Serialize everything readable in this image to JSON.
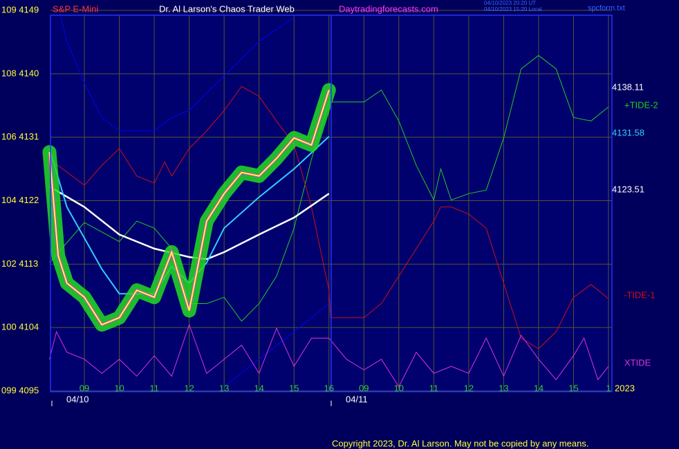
{
  "chart_data": {
    "type": "line",
    "instrument": "S&P E-Mini",
    "title": "Dr. Al Larson's Chaos Trader Web",
    "site": "Daytradingforecasts.com",
    "timestamps": [
      "04/10/2023 20:20 UT",
      "04/10/2023 15:20 Local"
    ],
    "file": "spcform.txt",
    "date_labels": [
      "04/10",
      "04/11"
    ],
    "price_labels": [
      "4138.11",
      "4131.58",
      "4123.51"
    ],
    "year_label": "2023",
    "copyright": "Copyright 2023, Dr. Al Larson. May not be copied by any means.",
    "xlim": [
      0,
      16
    ],
    "xticks": [
      {
        "value": 1,
        "label": "09"
      },
      {
        "value": 2,
        "label": "10"
      },
      {
        "value": 3,
        "label": "11"
      },
      {
        "value": 4,
        "label": "12"
      },
      {
        "value": 5,
        "label": "13"
      },
      {
        "value": 6,
        "label": "14"
      },
      {
        "value": 7,
        "label": "15"
      },
      {
        "value": 8,
        "label": "16"
      },
      {
        "value": 9,
        "label": "09"
      },
      {
        "value": 10,
        "label": "10"
      },
      {
        "value": 11,
        "label": "11"
      },
      {
        "value": 12,
        "label": "12"
      },
      {
        "value": 13,
        "label": "13"
      },
      {
        "value": 14,
        "label": "14"
      },
      {
        "value": 15,
        "label": "15"
      },
      {
        "value": 16,
        "label": "1"
      }
    ],
    "ylim": [
      4095,
      4149
    ],
    "yticks": [
      {
        "value": 4149,
        "label": "109 4149"
      },
      {
        "value": 4140,
        "label": "108 4140"
      },
      {
        "value": 4131,
        "label": "106 4131"
      },
      {
        "value": 4122,
        "label": "104 4122"
      },
      {
        "value": 4113,
        "label": "102 4113"
      },
      {
        "value": 4104,
        "label": "100 4104"
      },
      {
        "value": 4095,
        "label": "099 4095"
      }
    ],
    "grid": true,
    "series": [
      {
        "color": "#0000ff",
        "x": [
          0.3,
          0.5,
          1,
          1.5,
          2,
          3,
          3.5,
          4,
          5,
          6,
          7
        ],
        "values": [
          4148.5,
          4144.6,
          4138.7,
          4133.8,
          4131.9,
          4131.9,
          4133.8,
          4134.8,
          4139.7,
          4144.6,
          4148.0
        ]
      },
      {
        "color": "#0000ff",
        "x": [
          5,
          6,
          7,
          8
        ],
        "values": [
          4095.6,
          4099.5,
          4103.4,
          4107.4
        ]
      },
      {
        "name": "+TIDE-2",
        "color": "#22cc22",
        "x": [
          0,
          1,
          2,
          2.5,
          3,
          3.5,
          4,
          4.5,
          5,
          5.5,
          6,
          6.5,
          7,
          7.5,
          8,
          8.5,
          9,
          9.5,
          10,
          10.5,
          11,
          11.2,
          11.5,
          12,
          12.5,
          13,
          13.5,
          14,
          14.5,
          15,
          15.5,
          16
        ],
        "values": [
          4113.2,
          4118.9,
          4116.2,
          4119.1,
          4118.1,
          4115.2,
          4107.4,
          4107.4,
          4108.3,
          4104.9,
          4107.4,
          4111.3,
          4118.1,
          4127.9,
          4136.0,
          4136.0,
          4136.0,
          4137.7,
          4133.3,
          4127.0,
          4122.1,
          4126.5,
          4122.1,
          4123.0,
          4123.5,
          4130.9,
          4140.7,
          4142.6,
          4140.7,
          4133.8,
          4133.3,
          4135.3
        ]
      },
      {
        "name": "-TIDE-1",
        "color": "#cc1111",
        "x": [
          0,
          1,
          1.5,
          2,
          2.5,
          3,
          3.3,
          3.5,
          4,
          4.5,
          5,
          5.5,
          6,
          6.5,
          7,
          7.5,
          8,
          8.05,
          9,
          9.5,
          10,
          11,
          11.2,
          11.5,
          12,
          12.5,
          13,
          13.5,
          14,
          14.5,
          15,
          15.5,
          16
        ],
        "values": [
          4127.9,
          4124.2,
          4127.0,
          4129.4,
          4125.5,
          4124.5,
          4127.5,
          4125.5,
          4129.4,
          4131.9,
          4134.8,
          4138.2,
          4136.8,
          4133.3,
          4129.9,
          4121.1,
          4109.3,
          4105.4,
          4105.4,
          4107.4,
          4111.3,
          4119.1,
          4121.1,
          4121.1,
          4120.1,
          4118.1,
          4110.3,
          4102.5,
          4101.0,
          4103.4,
          4108.3,
          4110.1,
          4108.1
        ]
      },
      {
        "name": "XTIDE",
        "color": "#dd33dd",
        "x": [
          0,
          0.2,
          0.5,
          1,
          1.5,
          2,
          2.5,
          3,
          3.5,
          4,
          4.5,
          5,
          5.5,
          6,
          6.5,
          7,
          7.5,
          8,
          8.5,
          9,
          9.5,
          10,
          10.5,
          11,
          11.5,
          12,
          12.5,
          13,
          13.5,
          14,
          14.5,
          15,
          15.3,
          15.7,
          16
        ],
        "values": [
          4099.5,
          4103.4,
          4100.5,
          4099.5,
          4097.5,
          4099.5,
          4097.1,
          4100.0,
          4097.1,
          4104.4,
          4097.5,
          4099.5,
          4101.5,
          4097.5,
          4103.9,
          4098.5,
          4102.5,
          4102.5,
          4099.5,
          4098.0,
          4099.5,
          4095.6,
          4100.5,
          4097.5,
          4098.5,
          4097.5,
          4102.5,
          4097.1,
          4102.9,
          4099.5,
          4096.6,
          4100.0,
          4102.5,
          4096.6,
          4098.5
        ]
      },
      {
        "color": "#ffffff",
        "x": [
          0,
          1,
          2,
          3,
          4,
          4.5,
          5,
          6,
          7,
          8
        ],
        "values": [
          4124.0,
          4121.1,
          4117.2,
          4115.2,
          4114.0,
          4113.7,
          4114.7,
          4117.2,
          4119.6,
          4123.0
        ]
      },
      {
        "color": "#33ccff",
        "x": [
          0,
          0.5,
          1,
          1.5,
          2,
          3,
          3.5,
          4,
          4.5,
          5,
          6,
          7,
          8
        ],
        "values": [
          4129.4,
          4121.1,
          4116.7,
          4112.3,
          4108.8,
          4108.8,
          4112.7,
          4110.3,
          4113.2,
          4118.1,
          4122.5,
          4126.5,
          4131.1
        ]
      },
      {
        "color": "#ffff33",
        "x": [
          0,
          0.25,
          0.5,
          1,
          1.5,
          2,
          2.5,
          3,
          3.5,
          4,
          4.5,
          5,
          5.5,
          6,
          6.5,
          7,
          7.5,
          8
        ],
        "values": [
          4128.9,
          4114.2,
          4110.3,
          4108.3,
          4104.4,
          4105.4,
          4109.3,
          4108.3,
          4114.7,
          4106.4,
          4119.1,
          4123.0,
          4126.0,
          4125.5,
          4128.0,
          4130.9,
          4129.9,
          4137.7
        ]
      }
    ]
  }
}
